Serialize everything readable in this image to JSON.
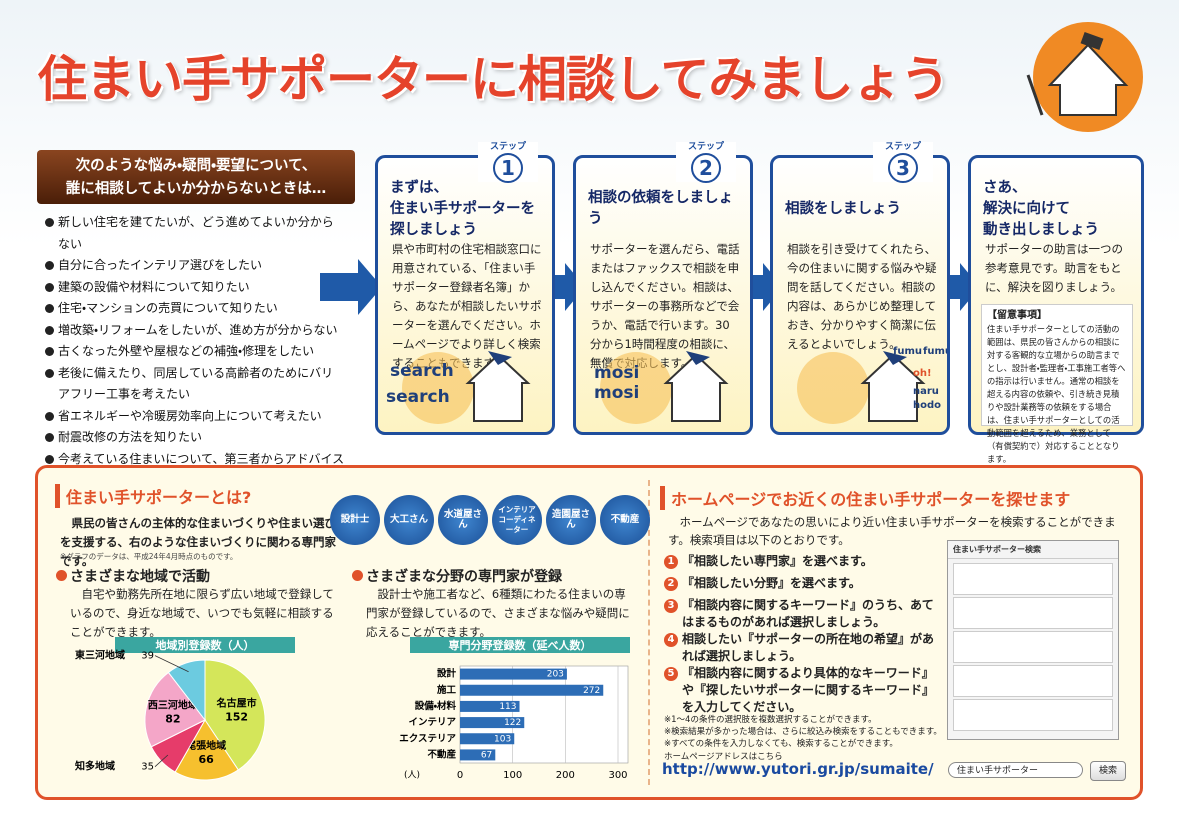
{
  "header": {
    "title": "住まい手サポーターに相談してみましょう"
  },
  "intro": {
    "heading": [
      "次のような悩み・疑問・要望について、",
      "誰に相談してよいか分からないときは…"
    ],
    "items": [
      "新しい住宅を建てたいが、どう進めてよいか分からない",
      "自分に合ったインテリア選びをしたい",
      "建築の設備や材料について知りたい",
      "住宅・マンションの売買について知りたい",
      "増改築・リフォームをしたいが、進め方が分からない",
      "古くなった外壁や屋根などの補強・修理をしたい",
      "老後に備えたり、同居している高齢者のためにバリアフリー工事を考えたい",
      "省エネルギーや冷暖房効率向上について考えたい",
      "耐震改修の方法を知りたい",
      "今考えている住まいについて、第三者からアドバイスがほしい"
    ]
  },
  "steps": [
    {
      "badge": "ステップ",
      "number": "1",
      "title": [
        "まずは、",
        "住まい手サポーターを",
        "探しましょう"
      ],
      "text": "県や市町村の住宅相談窓口に用意されている、「住まい手サポーター登録者名簿」から、あなたが相談したいサポーターを選んでください。ホームページでより詳しく検索することもできます。",
      "art": [
        "search",
        "search"
      ]
    },
    {
      "badge": "ステップ",
      "number": "2",
      "title": [
        "相談の依頼をしましょう"
      ],
      "text": "サポーターを選んだら、電話またはファックスで相談を申し込んでください。相談は、サポーターの事務所などで会うか、電話で行います。30分から1時間程度の相談に、無償で対応します。",
      "art": [
        "mosi",
        "mosi"
      ]
    },
    {
      "badge": "ステップ",
      "number": "3",
      "title": [
        "相談をしましょう"
      ],
      "text": "相談を引き受けてくれたら、今の住まいに関する悩みや疑問を話してください。相談の内容は、あらかじめ整理しておき、分かりやすく簡潔に伝えるとよいでしょう。",
      "art": [
        "fumu",
        "fumu",
        "oh!",
        "naru",
        "hodo"
      ]
    },
    {
      "title": [
        "さあ、",
        "解決に向けて",
        "動き出しましょう"
      ],
      "text": "サポーターの助言は一つの参考意見です。助言をもとに、解決を図りましょう。",
      "note_title": "【留意事項】",
      "note": "住まい手サポーターとしての活動の範囲は、県民の皆さんからの相談に対する客観的な立場からの助言までとし、設計者・監理者・工事施工者等への指示は行いません。通常の相談を超える内容の依頼や、引き続き見積りや設計業務等の依頼をする場合は、住まい手サポーターとしての活動範囲を超えるため、業務として（有償契約で）対応することとなります。"
    }
  ],
  "about": {
    "title": "住まい手サポーターとは?",
    "text": "県民の皆さんの主体的な住まいづくりや住まい選びを支援する、右のような住まいづくりに関わる専門家です。",
    "footnote": "※グラフのデータは、平成24年4月時点のものです。",
    "badges": [
      "設計士",
      "大工さん",
      "水道屋さん",
      "インテリアコーディネーター",
      "造園屋さん",
      "不動産"
    ],
    "sections": [
      {
        "title": "さまざまな地域で活動",
        "text": "自宅や勤務先所在地に限らず広い地域で登録しているので、身近な地域で、いつでも気軽に相談することができます。"
      },
      {
        "title": "さまざまな分野の専門家が登録",
        "text": "設計士や施工者など、6種類にわたる住まいの専門家が登録しているので、さまざまな悩みや疑問に応えることができます。"
      }
    ]
  },
  "pie_chart": {
    "type": "pie",
    "title": "地域別登録数（人）",
    "categories": [
      "名古屋市",
      "尾張地域",
      "知多地域",
      "西三河地域",
      "東三河地域"
    ],
    "values": [
      152,
      66,
      35,
      82,
      39
    ],
    "colors": [
      "#d4e65a",
      "#f6c02e",
      "#e63c6a",
      "#f4a6c8",
      "#6ccbe0"
    ]
  },
  "bar_chart": {
    "type": "hbar",
    "title": "専門分野登録数（延べ人数）",
    "categories": [
      "設計",
      "施工",
      "設備・材料",
      "インテリア",
      "エクステリア",
      "不動産"
    ],
    "values": [
      203,
      272,
      113,
      122,
      103,
      67
    ],
    "color": "#2d6db6",
    "xlabel": "(人)",
    "xlim": [
      0,
      300
    ],
    "xticks": [
      0,
      100,
      200,
      300
    ],
    "grid": true
  },
  "search": {
    "title": "ホームページでお近くの住まい手サポーターを探せます",
    "intro": "ホームページであなたの思いにより近い住まい手サポーターを検索することができます。検索項目は以下のとおりです。",
    "items": [
      {
        "num": "1",
        "text": "『相談したい専門家』を選べます。"
      },
      {
        "num": "2",
        "text": "『相談したい分野』を選べます。"
      },
      {
        "num": "3",
        "text": "『相談内容に関するキーワード』のうち、あてはまるものがあれば選択しましょう。"
      },
      {
        "num": "4",
        "text": "相談したい『サポーターの所在地の希望』があれば選択しましょう。"
      },
      {
        "num": "5",
        "text": "『相談内容に関するより具体的なキーワード』や『探したいサポーターに関するキーワード』を入力してください。"
      }
    ],
    "notes": [
      "※1～4の条件の選択肢を複数選択することができます。",
      "※検索結果が多かった場合は、さらに絞込み検索をすることもできます。",
      "※すべての条件を入力しなくても、検索することができます。"
    ],
    "screenshot_title": "住まい手サポーター検索",
    "url_label": "ホームページアドレスはこちら",
    "url": "http://www.yutori.gr.jp/sumaite/",
    "box_text": "住まい手サポーター",
    "button": "検索"
  }
}
